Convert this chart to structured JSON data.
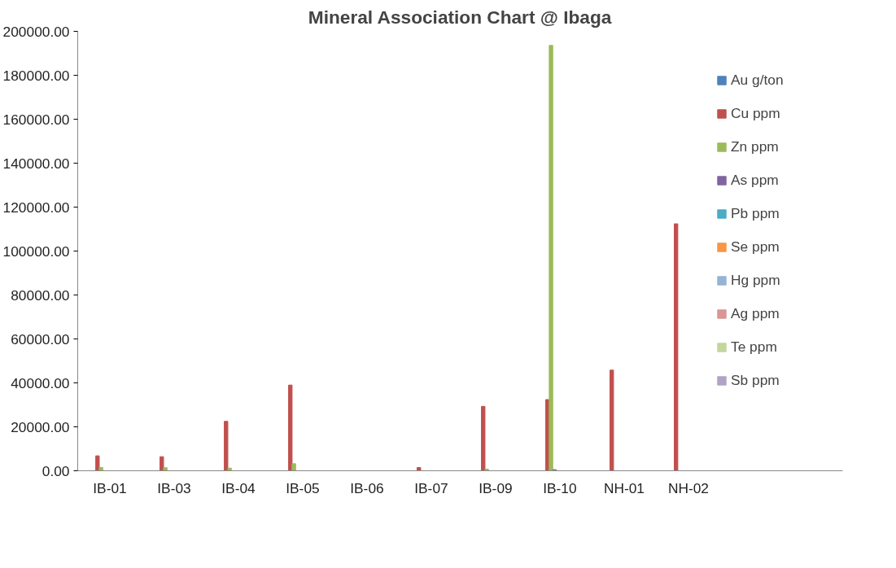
{
  "chart_data": {
    "type": "bar",
    "title": "Mineral Association Chart @ Ibaga",
    "categories": [
      "IB-01",
      "IB-03",
      "IB-04",
      "IB-05",
      "IB-06",
      "IB-07",
      "IB-09",
      "IB-10",
      "NH-01",
      "NH-02"
    ],
    "series": [
      {
        "name": "Au g/ton",
        "color": "#4f81bd",
        "values": [
          0,
          0,
          0,
          0,
          0,
          0,
          0,
          0,
          0,
          0
        ]
      },
      {
        "name": "Cu ppm",
        "color": "#c0504d",
        "values": [
          6800,
          6400,
          22500,
          39000,
          0,
          1500,
          29300,
          32400,
          45800,
          112400
        ]
      },
      {
        "name": "Zn ppm",
        "color": "#9bbb59",
        "values": [
          1500,
          1400,
          1200,
          3200,
          0,
          0,
          700,
          193600,
          0,
          0
        ]
      },
      {
        "name": "As ppm",
        "color": "#8064a2",
        "values": [
          0,
          0,
          0,
          0,
          0,
          0,
          0,
          500,
          0,
          0
        ]
      },
      {
        "name": "Pb ppm",
        "color": "#4bacc6",
        "values": [
          0,
          0,
          0,
          0,
          0,
          0,
          0,
          0,
          0,
          0
        ]
      },
      {
        "name": "Se ppm",
        "color": "#f79646",
        "values": [
          0,
          0,
          0,
          0,
          0,
          0,
          0,
          0,
          0,
          0
        ]
      },
      {
        "name": "Hg ppm",
        "color": "#95b3d7",
        "values": [
          0,
          0,
          0,
          0,
          0,
          0,
          0,
          0,
          0,
          0
        ]
      },
      {
        "name": "Ag ppm",
        "color": "#d99694",
        "values": [
          0,
          0,
          0,
          0,
          0,
          0,
          0,
          0,
          0,
          0
        ]
      },
      {
        "name": "Te ppm",
        "color": "#c3d69b",
        "values": [
          0,
          0,
          0,
          0,
          0,
          0,
          0,
          0,
          0,
          0
        ]
      },
      {
        "name": "Sb ppm",
        "color": "#b3a2c7",
        "values": [
          0,
          0,
          0,
          0,
          0,
          0,
          0,
          0,
          0,
          0
        ]
      }
    ],
    "ylim": [
      0,
      200000
    ],
    "yticks": [
      {
        "value": 0,
        "label": "0.00"
      },
      {
        "value": 20000,
        "label": "20000.00"
      },
      {
        "value": 40000,
        "label": "40000.00"
      },
      {
        "value": 60000,
        "label": "60000.00"
      },
      {
        "value": 80000,
        "label": "80000.00"
      },
      {
        "value": 100000,
        "label": "100000.00"
      },
      {
        "value": 120000,
        "label": "120000.00"
      },
      {
        "value": 140000,
        "label": "140000.00"
      },
      {
        "value": 160000,
        "label": "160000.00"
      },
      {
        "value": 180000,
        "label": "180000.00"
      },
      {
        "value": 200000,
        "label": "200000.00"
      }
    ],
    "grid": false,
    "legend": "right"
  }
}
